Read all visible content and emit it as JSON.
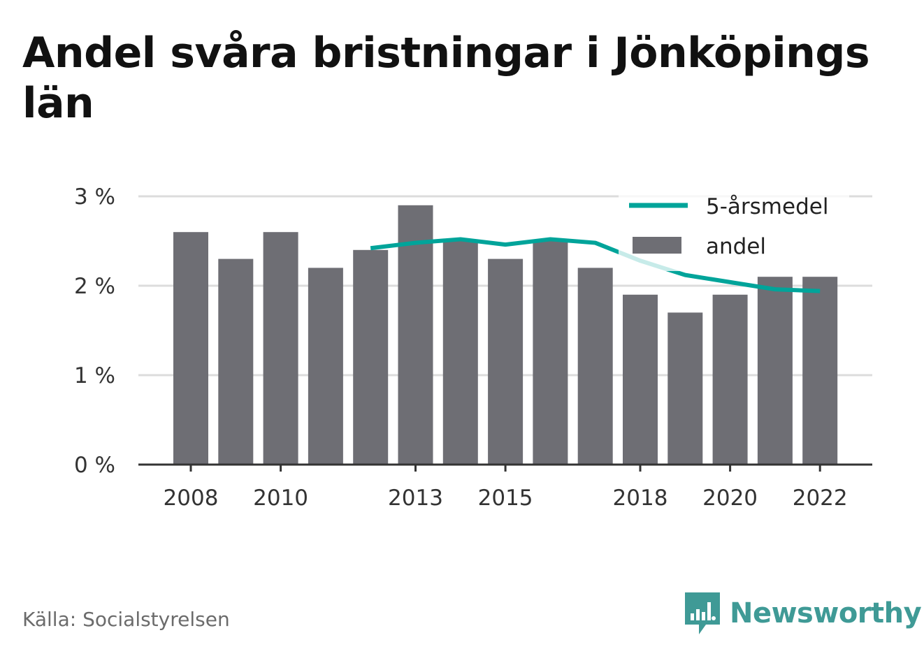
{
  "title": "Andel svåra bristningar i Jönköpings län",
  "source": "Källa: Socialstyrelsen",
  "brand": "Newsworthy",
  "colors": {
    "bar": "#6e6e74",
    "line": "#00a49a",
    "grid": "#dcdcdc",
    "axis": "#333333",
    "brand": "#3f9a96"
  },
  "chart_data": {
    "type": "bar",
    "x": [
      2008,
      2009,
      2010,
      2011,
      2012,
      2013,
      2014,
      2015,
      2016,
      2017,
      2018,
      2019,
      2020,
      2021,
      2022
    ],
    "xticks": [
      "2008",
      "2010",
      "2013",
      "2015",
      "2018",
      "2020",
      "2022"
    ],
    "ylim": [
      0,
      3
    ],
    "yticks": [
      "0 %",
      "1 %",
      "2 %",
      "3 %"
    ],
    "grid": true,
    "legend_placement": "top-right",
    "series": [
      {
        "name": "andel",
        "type": "bar",
        "values": [
          2.6,
          2.3,
          2.6,
          2.2,
          2.4,
          2.9,
          2.5,
          2.3,
          2.5,
          2.2,
          1.9,
          1.7,
          1.9,
          2.1,
          2.1
        ]
      },
      {
        "name": "5-årsmedel",
        "type": "line",
        "values": [
          null,
          null,
          null,
          null,
          2.42,
          2.48,
          2.52,
          2.46,
          2.52,
          2.48,
          2.28,
          2.12,
          2.04,
          1.96,
          1.94
        ]
      }
    ]
  }
}
